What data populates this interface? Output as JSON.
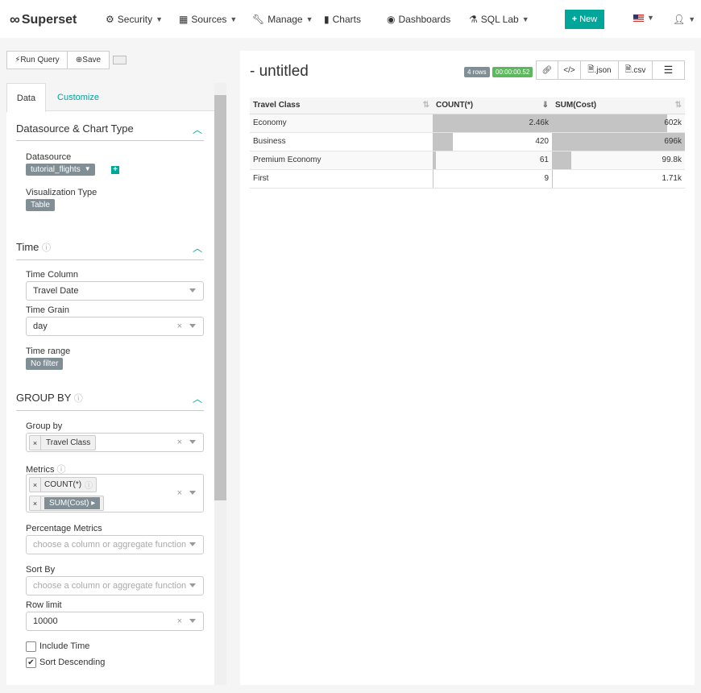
{
  "nav": {
    "brand": "Superset",
    "items": [
      {
        "label": "Security",
        "icon": "cogs-icon",
        "dropdown": true
      },
      {
        "label": "Sources",
        "icon": "table-icon",
        "dropdown": true
      },
      {
        "label": "Manage",
        "icon": "wrench-icon",
        "dropdown": true
      },
      {
        "label": "Charts",
        "icon": "bar-chart-icon",
        "dropdown": false
      },
      {
        "label": "Dashboards",
        "icon": "dashboard-icon",
        "dropdown": false
      },
      {
        "label": "SQL Lab",
        "icon": "flask-icon",
        "dropdown": true
      }
    ],
    "new_label": "New",
    "accent": "#00a699"
  },
  "toolbar": {
    "run_query": "Run Query",
    "save": "Save"
  },
  "tabs": [
    "Data",
    "Customize"
  ],
  "sections": {
    "datasource": {
      "title": "Datasource & Chart Type",
      "datasource_label": "Datasource",
      "datasource_value": "tutorial_flights",
      "viz_label": "Visualization Type",
      "viz_value": "Table"
    },
    "time": {
      "title": "Time",
      "time_column_label": "Time Column",
      "time_column_value": "Travel Date",
      "time_grain_label": "Time Grain",
      "time_grain_value": "day",
      "time_range_label": "Time range",
      "time_range_value": "No filter"
    },
    "groupby": {
      "title": "GROUP BY",
      "group_by_label": "Group by",
      "group_by_values": [
        "Travel Class"
      ],
      "metrics_label": "Metrics",
      "metrics_values": [
        "COUNT(*)",
        "SUM(Cost)"
      ],
      "pct_label": "Percentage Metrics",
      "pct_placeholder": "choose a column or aggregate function",
      "sort_label": "Sort By",
      "sort_placeholder": "choose a column or aggregate function",
      "row_limit_label": "Row limit",
      "row_limit_value": "10000",
      "include_time_label": "Include Time",
      "include_time": false,
      "sort_desc_label": "Sort Descending",
      "sort_desc": true
    }
  },
  "chart": {
    "title": "- untitled",
    "rows_badge": "4 rows",
    "timer": "00:00:00.52",
    "actions": [
      ".json",
      ".csv"
    ]
  },
  "table": {
    "columns": [
      "Travel Class",
      "COUNT(*)",
      "SUM(Cost)"
    ],
    "rows": [
      {
        "cls": "Economy",
        "count": "2.46k",
        "sum": "602k",
        "count_pct": 100,
        "sum_pct": 86.5
      },
      {
        "cls": "Business",
        "count": "420",
        "sum": "696k",
        "count_pct": 17,
        "sum_pct": 100
      },
      {
        "cls": "Premium Economy",
        "count": "61",
        "sum": "99.8k",
        "count_pct": 2.5,
        "sum_pct": 14.3
      },
      {
        "cls": "First",
        "count": "9",
        "sum": "1.71k",
        "count_pct": 0.4,
        "sum_pct": 0.2
      }
    ]
  }
}
